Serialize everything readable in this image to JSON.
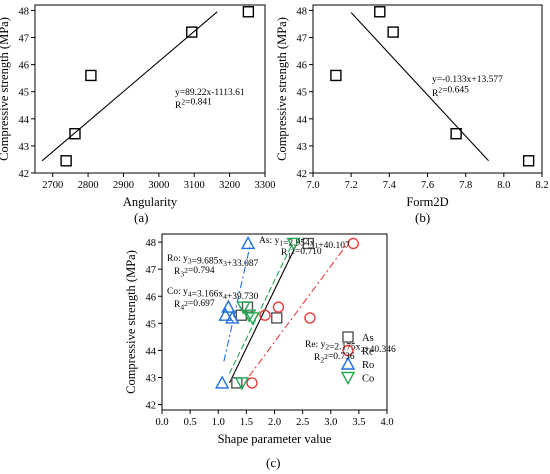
{
  "chart_data": [
    {
      "type": "scatter",
      "panel_label": "(a)",
      "xlabel": "Angularity",
      "ylabel": "Compressive strength (MPa)",
      "xlim": [
        2650,
        3300
      ],
      "ylim": [
        42,
        48.2
      ],
      "xticks": [
        "2700",
        "2800",
        "2900",
        "3000",
        "3100",
        "3200",
        "3300"
      ],
      "yticks": [
        "42",
        "43",
        "44",
        "45",
        "46",
        "47",
        "48"
      ],
      "points": [
        {
          "x": 2738,
          "y": 42.45
        },
        {
          "x": 2763,
          "y": 43.45
        },
        {
          "x": 2808,
          "y": 45.6
        },
        {
          "x": 3093,
          "y": 47.2
        },
        {
          "x": 3253,
          "y": 47.95
        }
      ],
      "fit": {
        "x0": 2670,
        "y0": 42.45,
        "x1": 3165,
        "y1": 47.95
      },
      "equation": "y=89.22x-1113.61",
      "r2": "R²=0.841"
    },
    {
      "type": "scatter",
      "panel_label": "(b)",
      "xlabel": "Form2D",
      "ylabel": "Compressive strength (MPa)",
      "xlim": [
        7.0,
        8.2
      ],
      "ylim": [
        42,
        48.2
      ],
      "xticks": [
        "7.0",
        "7.2",
        "7.4",
        "7.6",
        "7.8",
        "8.0",
        "8.2"
      ],
      "yticks": [
        "42",
        "43",
        "44",
        "45",
        "46",
        "47",
        "48"
      ],
      "points": [
        {
          "x": 7.12,
          "y": 45.6
        },
        {
          "x": 7.35,
          "y": 47.95
        },
        {
          "x": 7.42,
          "y": 47.2
        },
        {
          "x": 7.75,
          "y": 43.45
        },
        {
          "x": 8.13,
          "y": 42.45
        }
      ],
      "fit": {
        "x0": 7.2,
        "y0": 47.92,
        "x1": 7.92,
        "y1": 42.45
      },
      "equation": "y=-0.133x+13.577",
      "r2": "R²=0.645"
    },
    {
      "type": "scatter",
      "panel_label": "(c)",
      "xlabel": "Shape parameter value",
      "ylabel": "Compressive strength (MPa)",
      "xlim": [
        0.0,
        4.0
      ],
      "ylim": [
        41.8,
        48.3
      ],
      "xticks": [
        "0.0",
        "0.5",
        "1.0",
        "1.5",
        "2.0",
        "2.5",
        "3.0",
        "3.5",
        "4.0"
      ],
      "yticks": [
        "42",
        "43",
        "44",
        "45",
        "46",
        "47",
        "48"
      ],
      "series": [
        {
          "name": "As",
          "marker": "square",
          "color": "#555555",
          "points": [
            {
              "x": 1.33,
              "y": 42.8
            },
            {
              "x": 1.41,
              "y": 45.3
            },
            {
              "x": 1.52,
              "y": 45.6
            },
            {
              "x": 2.04,
              "y": 45.2
            },
            {
              "x": 2.6,
              "y": 47.95
            }
          ],
          "fit": {
            "x0": 1.2,
            "y0": 42.8,
            "x1": 2.4,
            "y1": 47.95
          },
          "fit_color": "#000000",
          "fit_style": "solid",
          "equation": "As: y₁=2.954x₁+40.107",
          "r2": "R₁²=0.710"
        },
        {
          "name": "Re",
          "marker": "circle",
          "color": "#ee3b3b",
          "points": [
            {
              "x": 1.6,
              "y": 42.8
            },
            {
              "x": 1.83,
              "y": 45.3
            },
            {
              "x": 2.07,
              "y": 45.6
            },
            {
              "x": 2.63,
              "y": 45.2
            },
            {
              "x": 3.4,
              "y": 47.95
            }
          ],
          "fit": {
            "x0": 1.55,
            "y0": 43.05,
            "x1": 3.3,
            "y1": 47.95
          },
          "fit_color": "#ee3b3b",
          "fit_style": "dashdot",
          "equation": "Re: y₂=2.175x₂+40.346",
          "r2": "R₂²=0.736"
        },
        {
          "name": "Ro",
          "marker": "triangle-up",
          "color": "#1e6fe0",
          "points": [
            {
              "x": 1.07,
              "y": 42.8
            },
            {
              "x": 1.13,
              "y": 45.3
            },
            {
              "x": 1.18,
              "y": 45.6
            },
            {
              "x": 1.25,
              "y": 45.2
            },
            {
              "x": 1.53,
              "y": 47.95
            }
          ],
          "fit": {
            "x0": 1.1,
            "y0": 43.6,
            "x1": 1.58,
            "y1": 48.0
          },
          "fit_color": "#1e6fe0",
          "fit_style": "dashdot",
          "equation": "Ro: y₃=9.685x₃+33.087",
          "r2": "R₃²=0.794"
        },
        {
          "name": "Co",
          "marker": "triangle-down",
          "color": "#22aa55",
          "points": [
            {
              "x": 1.42,
              "y": 42.8
            },
            {
              "x": 1.45,
              "y": 45.6
            },
            {
              "x": 1.55,
              "y": 45.3
            },
            {
              "x": 1.61,
              "y": 45.2
            },
            {
              "x": 2.34,
              "y": 47.95
            }
          ],
          "fit": {
            "x0": 1.2,
            "y0": 43.15,
            "x1": 2.32,
            "y1": 47.95
          },
          "fit_color": "#22aa55",
          "fit_style": "dashed",
          "equation": "Co: y₄=3.166x₄+39.730",
          "r2": "R₄²=0.697"
        }
      ]
    }
  ]
}
